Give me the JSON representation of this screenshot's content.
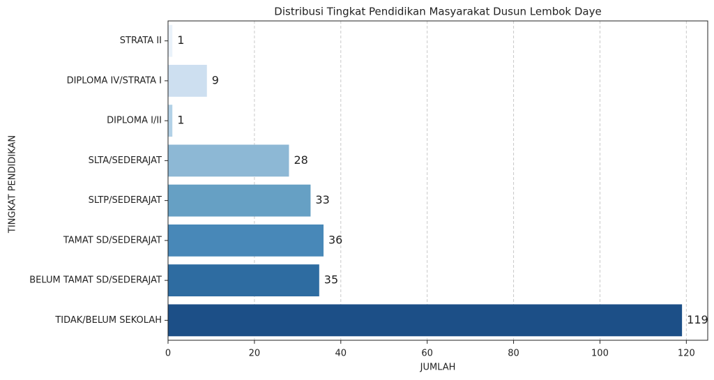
{
  "chart_data": {
    "type": "barh",
    "title": "Distribusi Tingkat Pendidikan Masyarakat Dusun Lembok Daye",
    "x_label": "JUMLAH",
    "y_label": "TINGKAT PENDIDIKAN",
    "categories": [
      "STRATA II",
      "DIPLOMA IV/STRATA I",
      "DIPLOMA I/II",
      "SLTA/SEDERAJAT",
      "SLTP/SEDERAJAT",
      "TAMAT SD/SEDERAJAT",
      "BELUM TAMAT SD/SEDERAJAT",
      "TIDAK/BELUM SEKOLAH"
    ],
    "values": [
      1,
      9,
      1,
      28,
      33,
      36,
      35,
      119
    ],
    "colors": [
      "#eaf2fa",
      "#cddff0",
      "#b2d1e7",
      "#8db8d5",
      "#66a0c4",
      "#4888b8",
      "#2e6ca1",
      "#1c4f87"
    ],
    "xlim": [
      0,
      124.95
    ],
    "xticks": [
      0,
      20,
      40,
      60,
      80,
      100,
      120
    ],
    "grid": true
  }
}
